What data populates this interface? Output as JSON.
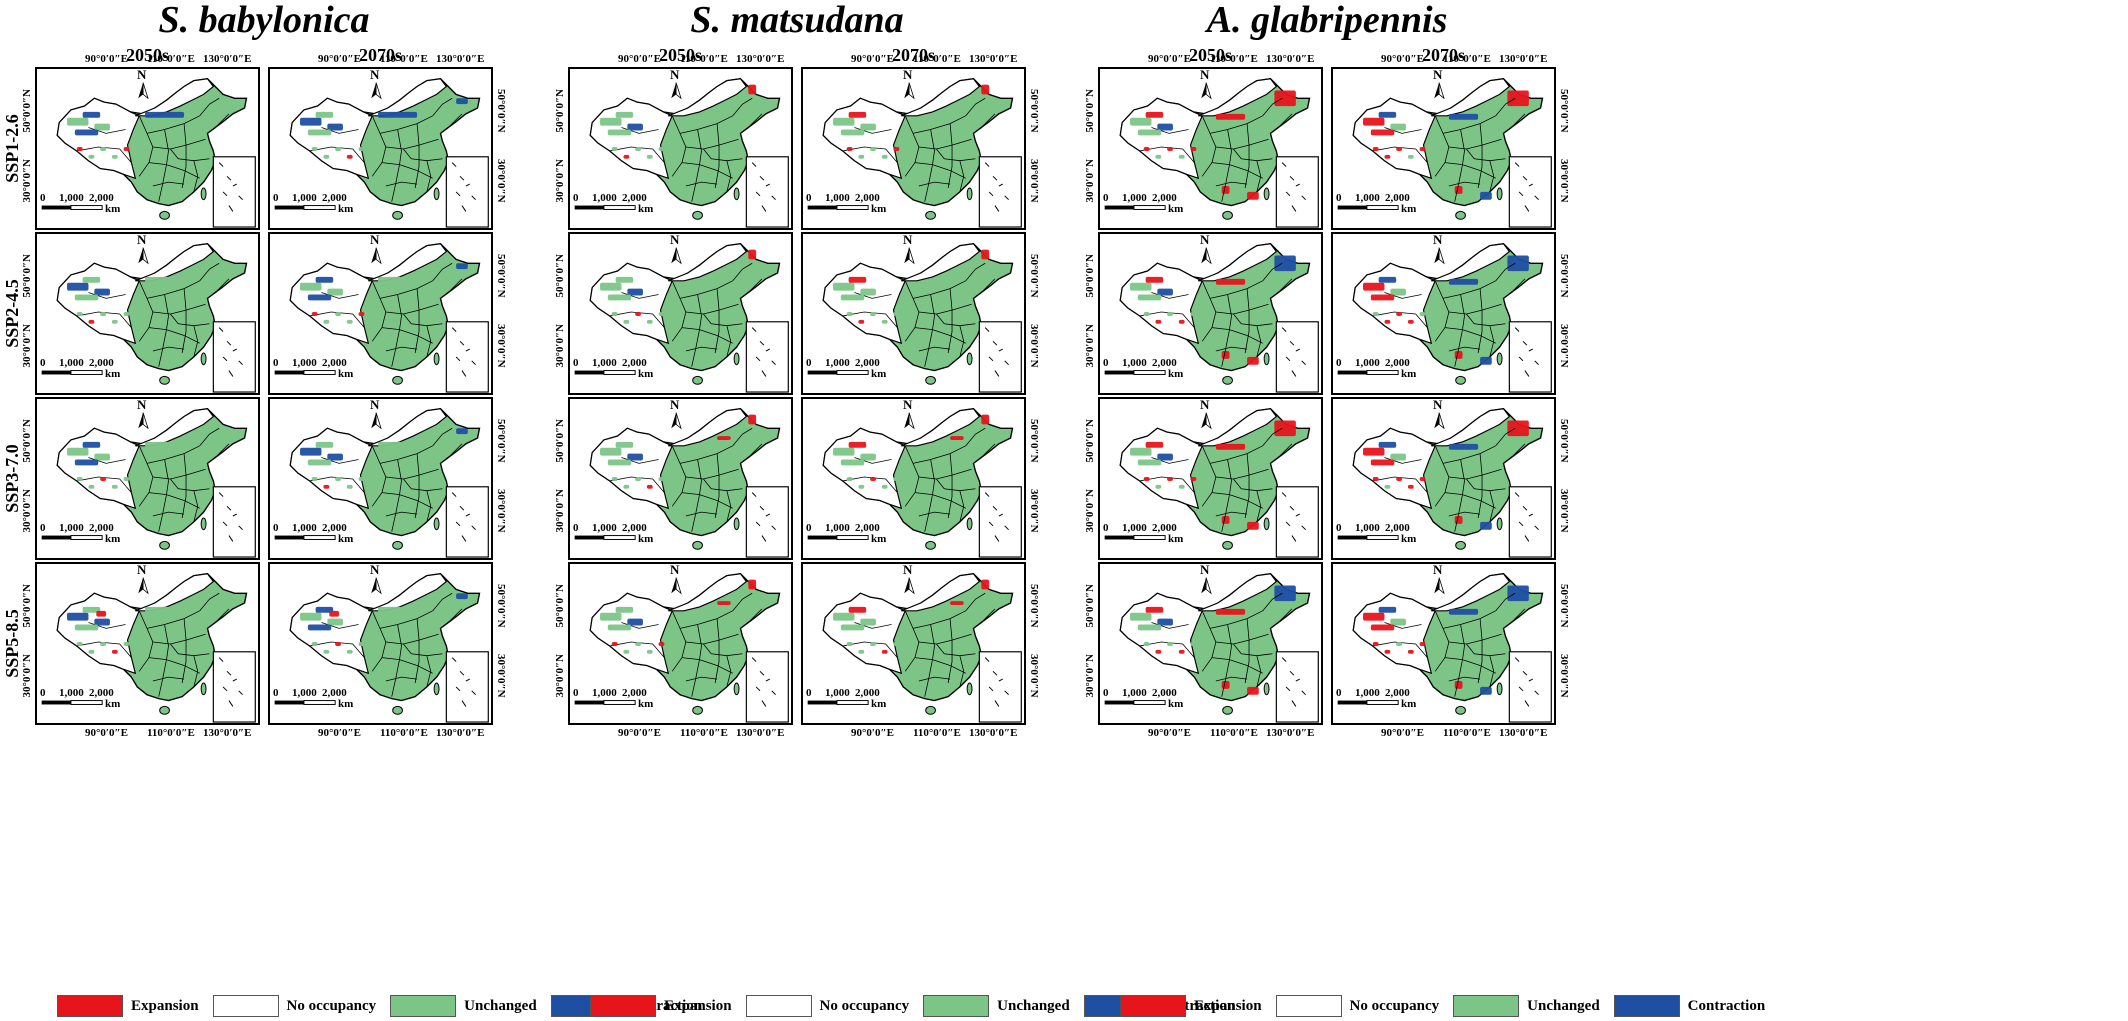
{
  "species": [
    "S. babylonica",
    "S. matsudana",
    "A. glabripennis"
  ],
  "periods": [
    "2050s",
    "2070s"
  ],
  "scenarios": [
    "SSP1-2.6",
    "SSP2-4.5",
    "SSP3-7.0",
    "SSP5-8.5"
  ],
  "map_labels": {
    "north": "N",
    "lon": [
      "90°0′0″E",
      "110°0′0″E",
      "130°0′0″E"
    ],
    "lat": [
      "50°0′0″N",
      "30°0′0″N"
    ],
    "scale": [
      "0",
      "1,000",
      "2,000",
      "km"
    ]
  },
  "legend": [
    {
      "label": "Expansion",
      "color": "#e8141c"
    },
    {
      "label": "No occupancy",
      "color": "#ffffff"
    },
    {
      "label": "Unchanged",
      "color": "#7cc587"
    },
    {
      "label": "Contraction",
      "color": "#1f4fa3"
    }
  ],
  "colors": {
    "unchanged": "#7cc587",
    "expansion": "#e8141c",
    "contraction": "#1f4fa3",
    "border": "#000000"
  }
}
